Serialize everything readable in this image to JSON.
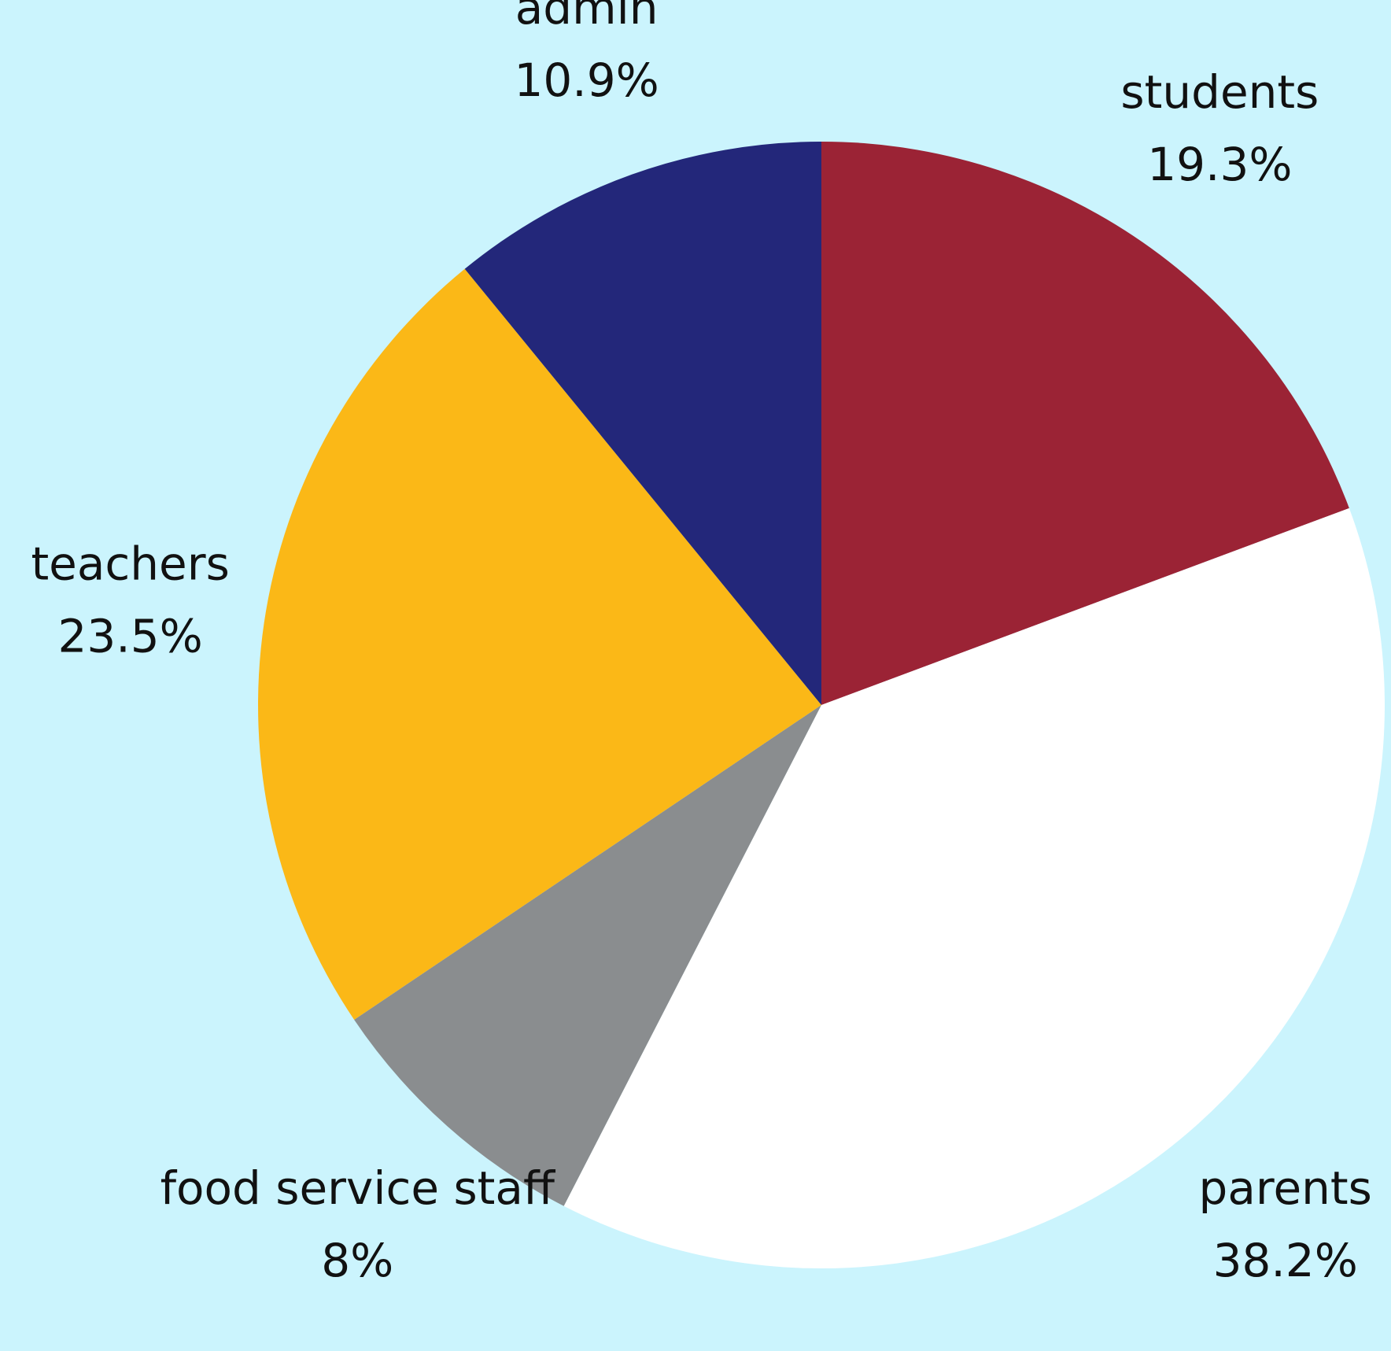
{
  "chart_data": {
    "type": "pie",
    "categories": [
      "students",
      "parents",
      "food service staff",
      "teachers",
      "admin"
    ],
    "values": [
      19.3,
      38.2,
      8,
      23.5,
      10.9
    ],
    "value_labels": [
      "19.3%",
      "38.2%",
      "8%",
      "23.5%",
      "10.9%"
    ],
    "colors": [
      "#9b2335",
      "#ffffff",
      "#8a8d8f",
      "#fbb817",
      "#23277a"
    ]
  }
}
